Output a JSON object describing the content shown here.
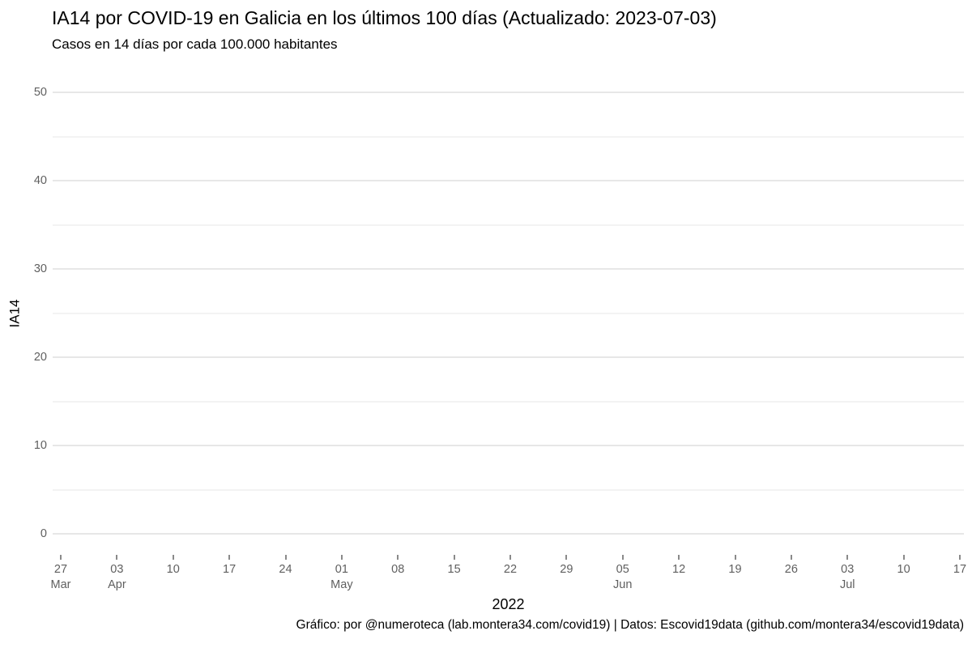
{
  "header": {
    "title": "IA14 por COVID-19 en Galicia en los últimos 100 días (Actualizado: 2023-07-03)",
    "subtitle": "Casos en 14 días por cada 100.000 habitantes"
  },
  "footer": {
    "credit": "Gráfico: por @numeroteca (lab.montera34.com/covid19) | Datos: Escovid19data (github.com/montera34/escovid19data)"
  },
  "colors": {
    "background": "#ffffff",
    "grid_major": "#e7e7e7",
    "grid_minor": "#f3f3f3",
    "tick_label": "#5f5f5f",
    "tick_mark": "#8a8a8a",
    "text": "#000000"
  },
  "chart_data": {
    "type": "line",
    "title": "IA14 por COVID-19 en Galicia en los últimos 100 días (Actualizado: 2023-07-03)",
    "subtitle": "Casos en 14 días por cada 100.000 habitantes",
    "xlabel": "2022",
    "ylabel": "IA14",
    "ylim": [
      0,
      50
    ],
    "grid": true,
    "legend": "none",
    "y_major_ticks": [
      0,
      10,
      20,
      30,
      40,
      50
    ],
    "y_minor_gridlines": [
      5,
      15,
      25,
      35,
      45
    ],
    "x_tick_labels": [
      {
        "day": "27",
        "month": "Mar"
      },
      {
        "day": "03",
        "month": "Apr"
      },
      {
        "day": "10"
      },
      {
        "day": "17"
      },
      {
        "day": "24"
      },
      {
        "day": "01",
        "month": "May"
      },
      {
        "day": "08"
      },
      {
        "day": "15"
      },
      {
        "day": "22"
      },
      {
        "day": "29"
      },
      {
        "day": "05",
        "month": "Jun"
      },
      {
        "day": "12"
      },
      {
        "day": "19"
      },
      {
        "day": "26"
      },
      {
        "day": "03",
        "month": "Jul"
      },
      {
        "day": "10"
      },
      {
        "day": "17"
      }
    ],
    "series": []
  }
}
